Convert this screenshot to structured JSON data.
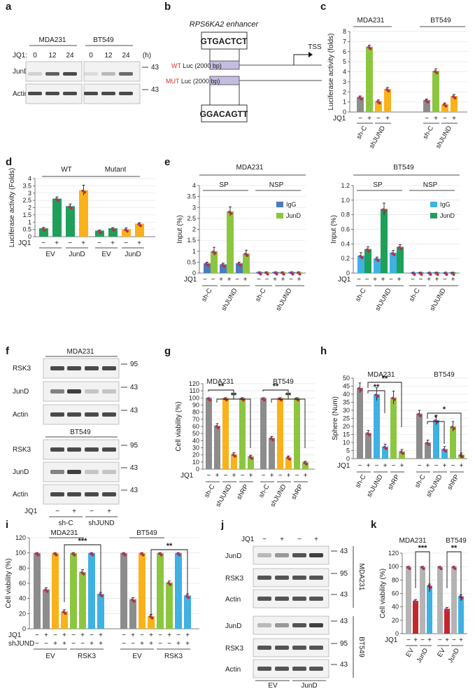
{
  "colors": {
    "gray": "#8c8c8c",
    "orange": "#f9b21a",
    "green": "#8cc63f",
    "blue": "#3fb1e3",
    "darkgreen": "#1fa05a",
    "steelblue": "#4a7bbf",
    "lightgray": "#b4b4b4",
    "red": "#c1272d",
    "lightblue": "#3fb1e3",
    "wt_red": "#d0342c",
    "seq_blue": "#2f6fb3"
  },
  "panel_labels": [
    "a",
    "b",
    "c",
    "d",
    "e",
    "f",
    "g",
    "h",
    "i",
    "j",
    "k"
  ],
  "panel_a": {
    "cells": [
      "MDA231",
      "BT549"
    ],
    "treat_label": "JQ1:",
    "times": [
      "0",
      "12",
      "24"
    ],
    "unit": "(h)",
    "rows": [
      "JunD",
      "Actin"
    ],
    "mw": [
      "43",
      "43"
    ]
  },
  "panel_b": {
    "enhancer": "RPS6KA2 enhancer",
    "seq_wt": "GTGACTCT",
    "seq_mut": "GGACAGTT",
    "wt_prefix": "WT",
    "wt_rest": " Luc (2000 bp)",
    "mut_prefix": "MUT",
    "mut_rest": " Luc (2000 bp)",
    "tss": "TSS"
  },
  "panel_f": {
    "cells": [
      "MDA231",
      "BT549"
    ],
    "rows": [
      "RSK3",
      "JunD",
      "Actin"
    ],
    "mw": [
      "95",
      "43",
      "43"
    ],
    "treat_label": "JQ1",
    "signs": [
      "−",
      "+",
      "−",
      "+"
    ],
    "groups": [
      "sh-C",
      "shJUND"
    ]
  },
  "panel_j": {
    "treat_label": "JQ1",
    "signs": [
      "−",
      "+",
      "−",
      "+"
    ],
    "rows": [
      "JunD",
      "RSK3",
      "Actin"
    ],
    "mw": [
      "43",
      "95",
      "43"
    ],
    "cells": [
      "MDA231",
      "BT549"
    ],
    "groups": [
      "EV",
      "JunD"
    ]
  },
  "chart_data": [
    {
      "panel": "c",
      "type": "bar",
      "ylabel": "Luciferase activity (folds)",
      "ylim": [
        0,
        8
      ],
      "yticks": [
        "0",
        "1",
        "2",
        "3",
        "4",
        "5",
        "6",
        "7",
        "8"
      ],
      "cells": [
        "MDA231",
        "BT549"
      ],
      "row_label": "JQ1",
      "signs": [
        "−",
        "+",
        "−",
        "+"
      ],
      "groups": [
        "sh-C",
        "shJUND"
      ],
      "series": [
        {
          "cell": "MDA231",
          "values": [
            1.5,
            6.5,
            1.1,
            2.3
          ],
          "errors": [
            0.1,
            0.15,
            0.1,
            0.15
          ]
        },
        {
          "cell": "BT549",
          "values": [
            1.2,
            4.1,
            0.8,
            1.6
          ],
          "errors": [
            0.1,
            0.2,
            0.1,
            0.15
          ]
        }
      ]
    },
    {
      "panel": "d",
      "type": "bar",
      "ylabel": "Luciferase activity (Folds)",
      "ylim": [
        0,
        4
      ],
      "yticks": [
        "0",
        "0.5",
        "1",
        "1.5",
        "2",
        "2.5",
        "3",
        "3.5",
        "4"
      ],
      "top_groups": [
        "WT",
        "Mutant"
      ],
      "row_label": "JQ1",
      "signs": [
        "−",
        "+",
        "−",
        "+",
        "−",
        "+",
        "−",
        "+"
      ],
      "groups": [
        "EV",
        "JunD",
        "EV",
        "JunD"
      ],
      "values": [
        0.58,
        2.62,
        2.1,
        3.2,
        0.42,
        0.58,
        0.52,
        0.9
      ],
      "errors": [
        0.06,
        0.12,
        0.15,
        0.35,
        0.04,
        0.05,
        0.08,
        0.06
      ]
    },
    {
      "panel": "e1",
      "type": "bar",
      "title": "MDA231",
      "ylabel": "Input (%)",
      "ylim": [
        0,
        4
      ],
      "yticks": [
        "0",
        "0.5",
        "1",
        "1.5",
        "2",
        "2.5",
        "3",
        "3.5",
        "4"
      ],
      "groups": [
        "SP",
        "NSP"
      ],
      "legend": [
        "IgG",
        "JunD"
      ],
      "row_label": "JQ1",
      "signs": [
        "−",
        "−",
        "+",
        "+",
        "−",
        "+",
        "−",
        "−",
        "+",
        "+",
        "−",
        "+"
      ],
      "xgroups": [
        "sh-C",
        "shJUND",
        "sh-C",
        "shJUND"
      ],
      "igg": [
        0.45,
        0.4,
        0.45,
        0.05,
        0.05,
        0.05
      ],
      "jund": [
        1.0,
        2.82,
        0.9,
        0.05,
        0.05,
        0.05
      ],
      "err_igg": [
        0.05,
        0.05,
        0.05,
        0.01,
        0.01,
        0.01
      ],
      "err_jund": [
        0.18,
        0.2,
        0.15,
        0.01,
        0.01,
        0.01
      ]
    },
    {
      "panel": "e2",
      "type": "bar",
      "title": "BT549",
      "ylabel": "Input (%)",
      "ylim": [
        0,
        1.2
      ],
      "yticks": [
        "0",
        "0.2",
        "0.4",
        "0.6",
        "0.8",
        "1.0",
        "1.2"
      ],
      "groups": [
        "SP",
        "NSP"
      ],
      "legend": [
        "IgG",
        "JunD"
      ],
      "row_label": "JQ1",
      "signs": [
        "−",
        "−",
        "+",
        "+",
        "−",
        "+",
        "−",
        "−",
        "+",
        "+",
        "−",
        "+"
      ],
      "xgroups": [
        "sh-C",
        "shJUND",
        "sh-C",
        "shJUND"
      ],
      "igg": [
        0.24,
        0.2,
        0.28,
        0.01,
        0.01,
        0.01
      ],
      "jund": [
        0.33,
        0.88,
        0.36,
        0.01,
        0.01,
        0.01
      ],
      "err_igg": [
        0.04,
        0.02,
        0.03,
        0.005,
        0.005,
        0.005
      ],
      "err_jund": [
        0.03,
        0.08,
        0.03,
        0.005,
        0.005,
        0.005
      ]
    },
    {
      "panel": "g",
      "type": "bar",
      "ylabel": "Cell viability (%)",
      "ylim": [
        0,
        120
      ],
      "yticks": [
        "0",
        "10",
        "20",
        "30",
        "40",
        "50",
        "60",
        "70",
        "80",
        "90",
        "100",
        "110",
        "120"
      ],
      "cells": [
        "MDA231",
        "BT549"
      ],
      "row_label": "JQ1",
      "signs": [
        "−",
        "+",
        "−",
        "+",
        "−",
        "+"
      ],
      "groups": [
        "sh-C",
        "shJUND",
        "shRP"
      ],
      "sig": [
        "**",
        "**",
        "**",
        "**"
      ],
      "series": [
        {
          "cell": "MDA231",
          "values": [
            100,
            61,
            100,
            21,
            100,
            18
          ],
          "errors": [
            0.5,
            3,
            0.5,
            2,
            0.5,
            1.5
          ]
        },
        {
          "cell": "BT549",
          "values": [
            100,
            44,
            100,
            17,
            100,
            10
          ],
          "errors": [
            0.5,
            2,
            0.5,
            1.5,
            0.5,
            1
          ]
        }
      ]
    },
    {
      "panel": "h",
      "type": "bar",
      "ylabel": "Sphere (Num)",
      "ylim": [
        0,
        50
      ],
      "yticks": [
        "0",
        "5",
        "10",
        "15",
        "20",
        "25",
        "30",
        "35",
        "40",
        "45",
        "50"
      ],
      "cells": [
        "MDA231",
        "BT549"
      ],
      "row_label": "JQ1",
      "signs": [
        "−",
        "+",
        "−",
        "+",
        "−",
        "+"
      ],
      "groups": [
        "sh-C",
        "shJUND",
        "shRP"
      ],
      "sig": [
        "**",
        "**",
        "*",
        "*"
      ],
      "series": [
        {
          "cell": "MDA231",
          "values": [
            44,
            16,
            40,
            7.5,
            38,
            4.5
          ],
          "errors": [
            3,
            1.5,
            4,
            1.5,
            4,
            1.2
          ]
        },
        {
          "cell": "BT549",
          "values": [
            28,
            10,
            24,
            6,
            20,
            2.5
          ],
          "errors": [
            2,
            1.5,
            3,
            1.5,
            3,
            1
          ]
        }
      ]
    },
    {
      "panel": "i",
      "type": "bar",
      "ylabel": "Cell viability (%)",
      "ylim": [
        0,
        120
      ],
      "yticks": [
        "0",
        "20",
        "40",
        "60",
        "80",
        "100",
        "120"
      ],
      "cells": [
        "MDA231",
        "BT549"
      ],
      "row_labels": [
        "JQ1",
        "shJUND"
      ],
      "signs_jq1": [
        "−",
        "+",
        "−",
        "+",
        "−",
        "+",
        "−",
        "+"
      ],
      "signs_sh": [
        "−",
        "−",
        "+",
        "+",
        "−",
        "−",
        "+",
        "+"
      ],
      "groups": [
        "EV",
        "RSK3"
      ],
      "sig": [
        "***",
        "**"
      ],
      "series": [
        {
          "cell": "MDA231",
          "values": [
            100,
            52,
            100,
            23,
            100,
            75,
            100,
            46
          ],
          "errors": [
            0.5,
            2,
            0.5,
            2,
            0.5,
            3,
            0.5,
            2
          ]
        },
        {
          "cell": "BT549",
          "values": [
            100,
            39,
            100,
            17,
            100,
            61,
            100,
            44
          ],
          "errors": [
            0.5,
            2,
            0.5,
            2,
            0.5,
            2,
            0.5,
            2
          ]
        }
      ]
    },
    {
      "panel": "k",
      "type": "bar",
      "ylabel": "Cell viability (%)",
      "ylim": [
        0,
        120
      ],
      "yticks": [
        "0",
        "20",
        "40",
        "60",
        "80",
        "100",
        "120"
      ],
      "cells": [
        "MDA231",
        "BT549"
      ],
      "row_label": "JQ1",
      "signs": [
        "−",
        "+",
        "−",
        "+"
      ],
      "groups": [
        "EV",
        "JunD"
      ],
      "sig": [
        "***",
        "**"
      ],
      "series": [
        {
          "cell": "MDA231",
          "values": [
            100,
            49,
            100,
            72
          ],
          "errors": [
            0.5,
            2,
            0.5,
            2
          ]
        },
        {
          "cell": "BT549",
          "values": [
            100,
            37,
            100,
            56
          ],
          "errors": [
            0.5,
            2,
            0.5,
            2
          ]
        }
      ]
    }
  ]
}
